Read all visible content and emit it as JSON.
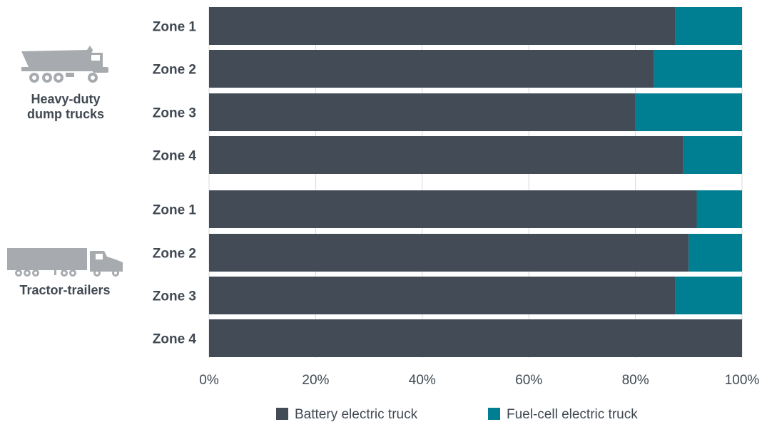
{
  "chart_data": {
    "type": "bar",
    "orientation": "horizontal",
    "stacked": true,
    "groups": [
      {
        "label_lines": [
          "Heavy-duty",
          "dump trucks"
        ],
        "icon": "dump-truck-icon",
        "categories": [
          "Zone 1",
          "Zone 2",
          "Zone 3",
          "Zone 4"
        ],
        "battery": [
          87.5,
          83.5,
          80,
          89
        ],
        "fuelcell": [
          12.5,
          16.5,
          20,
          11
        ]
      },
      {
        "label_lines": [
          "Tractor-trailers"
        ],
        "icon": "tractor-trailer-icon",
        "categories": [
          "Zone 1",
          "Zone 2",
          "Zone 3",
          "Zone 4"
        ],
        "battery": [
          91.5,
          90,
          87.5,
          100
        ],
        "fuelcell": [
          8.5,
          10,
          12.5,
          0
        ]
      }
    ],
    "series": [
      {
        "name": "Battery electric truck",
        "color": "#434c56"
      },
      {
        "name": "Fuel-cell electric truck",
        "color": "#007f93"
      }
    ],
    "xlim": [
      0,
      100
    ],
    "xticks": [
      "0%",
      "20%",
      "40%",
      "60%",
      "80%",
      "100%"
    ],
    "grid": true,
    "legend": "bottom"
  }
}
